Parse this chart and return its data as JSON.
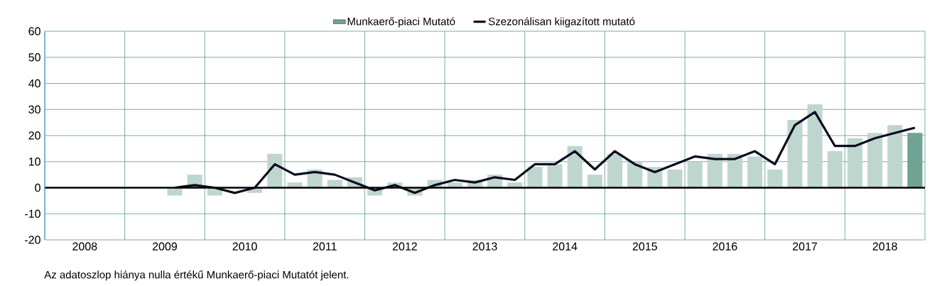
{
  "chart_data": {
    "type": "bar",
    "annotations": [
      "Az adatoszlop hiánya nulla értékű Munkaerő-piaci Mutatót jelent."
    ],
    "x": [
      2009.625,
      2009.875,
      2010.125,
      2010.375,
      2010.625,
      2010.875,
      2011.125,
      2011.375,
      2011.625,
      2011.875,
      2012.125,
      2012.375,
      2012.625,
      2012.875,
      2013.125,
      2013.375,
      2013.625,
      2013.875,
      2014.125,
      2014.375,
      2014.625,
      2014.875,
      2015.125,
      2015.375,
      2015.625,
      2015.875,
      2016.125,
      2016.375,
      2016.625,
      2016.875,
      2017.125,
      2017.375,
      2017.625,
      2017.875,
      2018.125,
      2018.375,
      2018.625,
      2018.875
    ],
    "series": [
      {
        "name": "Munkaerő-piaci Mutató",
        "color": "#6fa394",
        "colors": [
          "#bfd6cf",
          "#bfd6cf",
          "#bfd6cf",
          "#bfd6cf",
          "#bfd6cf",
          "#bfd6cf",
          "#bfd6cf",
          "#bfd6cf",
          "#bfd6cf",
          "#bfd6cf",
          "#bfd6cf",
          "#bfd6cf",
          "#bfd6cf",
          "#bfd6cf",
          "#bfd6cf",
          "#bfd6cf",
          "#bfd6cf",
          "#bfd6cf",
          "#bfd6cf",
          "#bfd6cf",
          "#bfd6cf",
          "#bfd6cf",
          "#bfd6cf",
          "#bfd6cf",
          "#bfd6cf",
          "#bfd6cf",
          "#bfd6cf",
          "#bfd6cf",
          "#bfd6cf",
          "#bfd6cf",
          "#bfd6cf",
          "#bfd6cf",
          "#bfd6cf",
          "#bfd6cf",
          "#bfd6cf",
          "#bfd6cf",
          "#bfd6cf",
          "#6fa394"
        ],
        "values": [
          -3,
          5,
          -3,
          0,
          -2,
          13,
          2,
          7,
          3,
          4,
          -3,
          2,
          -3,
          3,
          2,
          3,
          5,
          2,
          8,
          9,
          16,
          5,
          13,
          10,
          8,
          7,
          10,
          13,
          13,
          12,
          7,
          26,
          32,
          14,
          19,
          21,
          24,
          21
        ]
      },
      {
        "name": "Szezonálisan kiigazított mutató",
        "type": "line",
        "color": "#0b0b1e",
        "values": [
          0,
          1,
          0,
          -2,
          0,
          9,
          5,
          6,
          5,
          2,
          -1,
          1,
          -2,
          1,
          3,
          2,
          4,
          3,
          9,
          9,
          14,
          7,
          14,
          9,
          6,
          9,
          12,
          11,
          11,
          14,
          9,
          24,
          29,
          16,
          16,
          19,
          21,
          23
        ]
      }
    ],
    "xlim": [
      2008,
      2019
    ],
    "xticks": [
      {
        "value": 2008,
        "label": null
      },
      {
        "value": 2008.5,
        "label": "2008"
      },
      {
        "value": 2009,
        "label": null
      },
      {
        "value": 2009.5,
        "label": "2009"
      },
      {
        "value": 2010,
        "label": null
      },
      {
        "value": 2010.5,
        "label": "2010"
      },
      {
        "value": 2011,
        "label": null
      },
      {
        "value": 2011.5,
        "label": "2011"
      },
      {
        "value": 2012,
        "label": null
      },
      {
        "value": 2012.5,
        "label": "2012"
      },
      {
        "value": 2013,
        "label": null
      },
      {
        "value": 2013.5,
        "label": "2013"
      },
      {
        "value": 2014,
        "label": null
      },
      {
        "value": 2014.5,
        "label": "2014"
      },
      {
        "value": 2015,
        "label": null
      },
      {
        "value": 2015.5,
        "label": "2015"
      },
      {
        "value": 2016,
        "label": null
      },
      {
        "value": 2016.5,
        "label": "2016"
      },
      {
        "value": 2017,
        "label": null
      },
      {
        "value": 2017.5,
        "label": "2017"
      },
      {
        "value": 2018,
        "label": null
      },
      {
        "value": 2018.5,
        "label": "2018"
      },
      {
        "value": 2019,
        "label": null
      }
    ],
    "ylim": [
      -20,
      60
    ],
    "yticks": [
      -20,
      -10,
      0,
      10,
      20,
      30,
      40,
      50,
      60
    ],
    "grid": true,
    "legend": "top"
  }
}
